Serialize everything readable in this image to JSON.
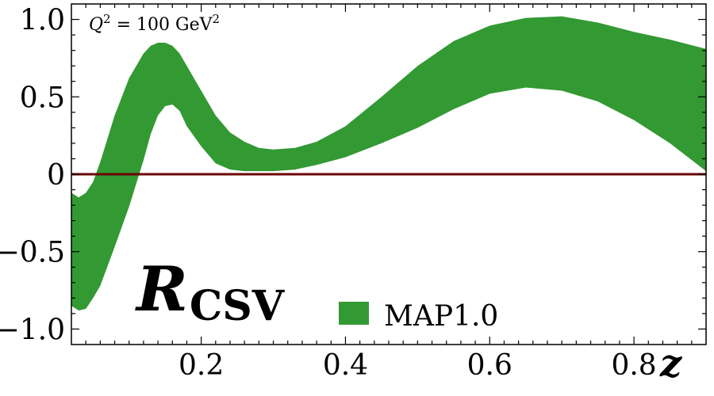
{
  "chart_data": {
    "type": "area",
    "annotation": {
      "base": "Q",
      "sup1": "2",
      "mid": " = 100 GeV",
      "sup2": "2"
    },
    "big_label": {
      "main": "R",
      "sub": "CSV"
    },
    "xlabel": "z",
    "ylabel": "",
    "xlim": [
      0.02,
      0.9
    ],
    "ylim": [
      -1.1,
      1.1
    ],
    "grid": false,
    "legend_position": "bottom-center",
    "x_ticks": [
      {
        "value": 0.2,
        "label": "0.2"
      },
      {
        "value": 0.4,
        "label": "0.4"
      },
      {
        "value": 0.6,
        "label": "0.6"
      },
      {
        "value": 0.8,
        "label": "0.8"
      }
    ],
    "y_ticks": [
      {
        "value": 1.0,
        "label": "1.0"
      },
      {
        "value": 0.5,
        "label": "0.5"
      },
      {
        "value": 0.0,
        "label": "0"
      },
      {
        "value": -0.5,
        "label": "−0.5"
      },
      {
        "value": -1.0,
        "label": "−1.0"
      }
    ],
    "reference_line": {
      "y": 0,
      "color": "#6b0000"
    },
    "series": [
      {
        "name": "MAP1.0",
        "color": "#339933",
        "x": [
          0.02,
          0.03,
          0.04,
          0.05,
          0.06,
          0.08,
          0.1,
          0.12,
          0.13,
          0.14,
          0.15,
          0.16,
          0.17,
          0.18,
          0.2,
          0.22,
          0.24,
          0.26,
          0.28,
          0.3,
          0.33,
          0.36,
          0.4,
          0.45,
          0.5,
          0.55,
          0.6,
          0.65,
          0.7,
          0.75,
          0.8,
          0.85,
          0.9
        ],
        "upper": [
          -0.12,
          -0.15,
          -0.12,
          -0.05,
          0.08,
          0.38,
          0.62,
          0.78,
          0.83,
          0.85,
          0.85,
          0.83,
          0.78,
          0.7,
          0.54,
          0.38,
          0.27,
          0.21,
          0.17,
          0.16,
          0.17,
          0.21,
          0.31,
          0.5,
          0.7,
          0.86,
          0.96,
          1.01,
          1.02,
          0.98,
          0.92,
          0.87,
          0.81
        ],
        "lower": [
          -0.85,
          -0.88,
          -0.87,
          -0.8,
          -0.72,
          -0.47,
          -0.21,
          0.09,
          0.26,
          0.38,
          0.44,
          0.45,
          0.41,
          0.31,
          0.18,
          0.07,
          0.03,
          0.02,
          0.02,
          0.02,
          0.03,
          0.06,
          0.11,
          0.2,
          0.3,
          0.42,
          0.52,
          0.56,
          0.54,
          0.47,
          0.35,
          0.2,
          0.02
        ]
      }
    ]
  }
}
